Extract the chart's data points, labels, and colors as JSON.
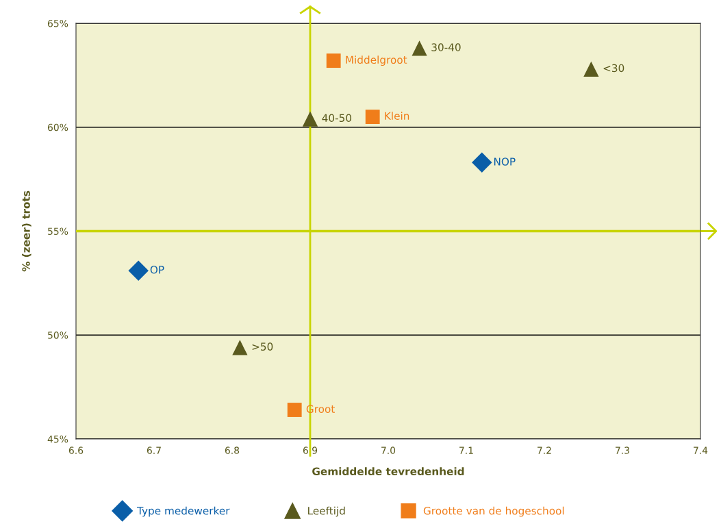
{
  "chart_data": {
    "type": "scatter",
    "xlabel": "Gemiddelde tevredenheid",
    "ylabel": "% (zeer) trots",
    "series": [
      {
        "name": "Type medewerker",
        "color": "#0a5ea8",
        "marker": "diamond",
        "x": [
          6.68,
          7.12
        ],
        "values": [
          53.1,
          58.3
        ],
        "value_labels": [
          "OP",
          "NOP"
        ]
      },
      {
        "name": "Leeftijd",
        "color": "#5a5a1e",
        "marker": "triangle",
        "x": [
          7.04,
          7.26,
          6.9,
          6.81
        ],
        "values": [
          63.8,
          62.8,
          60.4,
          49.4
        ],
        "value_labels": [
          "30-40",
          "<30",
          "40-50",
          ">50"
        ]
      },
      {
        "name": "Grootte van de hogeschool",
        "color": "#f07d1a",
        "marker": "square",
        "x": [
          6.93,
          6.98,
          6.88
        ],
        "values": [
          63.2,
          60.5,
          46.4
        ],
        "value_labels": [
          "Middelgroot",
          "Klein",
          "Groot"
        ]
      }
    ],
    "xlim": [
      6.6,
      7.4
    ],
    "xticks": [
      6.6,
      6.7,
      6.8,
      6.9,
      {
        "value": 7.0,
        "label": "7.0"
      },
      7.1,
      7.2,
      7.3,
      7.4
    ],
    "ylim": [
      45,
      65
    ],
    "yticks": [
      {
        "value": 45,
        "label": "45%"
      },
      {
        "value": 50,
        "label": "50%"
      },
      {
        "value": 55,
        "label": "55%"
      },
      {
        "value": 60,
        "label": "60%"
      },
      {
        "value": 65,
        "label": "65%"
      }
    ],
    "ref_lines": [
      {
        "axis": "x",
        "value": 6.9,
        "color": "#c8d400"
      },
      {
        "axis": "y",
        "value": 55,
        "color": "#c8d400"
      }
    ],
    "grid": "y",
    "legend": "bottom"
  }
}
